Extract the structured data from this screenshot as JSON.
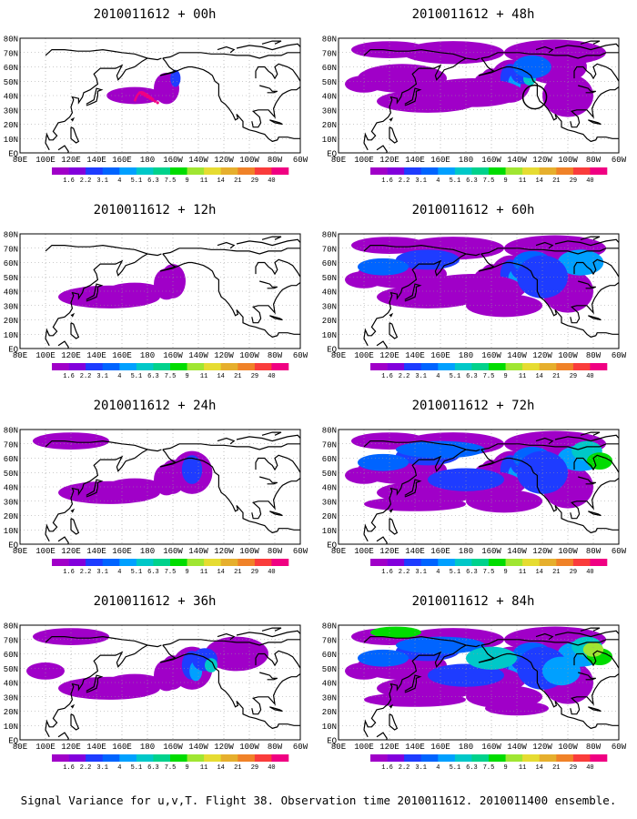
{
  "panels": [
    {
      "title": "2010011612 + 00h",
      "level": 0.12,
      "track": true,
      "circle": false
    },
    {
      "title": "2010011612 + 48h",
      "level": 0.62,
      "track": false,
      "circle": true
    },
    {
      "title": "2010011612 + 12h",
      "level": 0.22,
      "track": false,
      "circle": false
    },
    {
      "title": "2010011612 + 60h",
      "level": 0.75,
      "track": false,
      "circle": false
    },
    {
      "title": "2010011612 + 24h",
      "level": 0.38,
      "track": false,
      "circle": false
    },
    {
      "title": "2010011612 + 72h",
      "level": 0.85,
      "track": false,
      "circle": false
    },
    {
      "title": "2010011612 + 36h",
      "level": 0.5,
      "track": false,
      "circle": false
    },
    {
      "title": "2010011612 + 84h",
      "level": 0.95,
      "track": false,
      "circle": false
    }
  ],
  "lat_labels": [
    "80N",
    "70N",
    "60N",
    "50N",
    "40N",
    "30N",
    "20N",
    "10N",
    "EQ"
  ],
  "lon_labels": [
    "80E",
    "100E",
    "120E",
    "140E",
    "160E",
    "180",
    "160W",
    "140W",
    "120W",
    "100W",
    "80W",
    "60W"
  ],
  "colorbar": {
    "labels": [
      "1.6",
      "2.2",
      "3.1",
      "4",
      "5.1",
      "6.3",
      "7.5",
      "9",
      "11",
      "14",
      "21",
      "29",
      "40"
    ],
    "colors": [
      "#a000c8",
      "#8200dc",
      "#1e3cff",
      "#0064ff",
      "#00a0ff",
      "#00c8c8",
      "#00d28c",
      "#00dc00",
      "#a0e632",
      "#e6dc32",
      "#e6af2d",
      "#f08228",
      "#fa3c3c",
      "#f00082"
    ]
  },
  "footer": "Signal Variance for u,v,T. Flight 38. Observation time 2010011612. 2010011400 ensemble."
}
